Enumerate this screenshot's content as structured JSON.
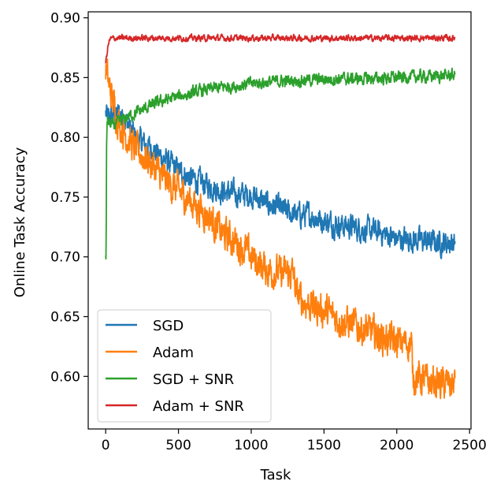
{
  "chart_data": {
    "type": "line",
    "title": "",
    "xlabel": "Task",
    "ylabel": "Online Task Accuracy",
    "xlim": [
      -120,
      2510
    ],
    "ylim": [
      0.556,
      0.905
    ],
    "xticks": [
      0,
      500,
      1000,
      1500,
      2000,
      2500
    ],
    "xtick_labels": [
      "0",
      "500",
      "1000",
      "1500",
      "2000",
      "2500"
    ],
    "yticks": [
      0.6,
      0.65,
      0.7,
      0.75,
      0.8,
      0.85,
      0.9
    ],
    "ytick_labels": [
      "0.60",
      "0.65",
      "0.70",
      "0.75",
      "0.80",
      "0.85",
      "0.90"
    ],
    "grid": false,
    "legend_position": "lower-left",
    "series": [
      {
        "name": "SGD",
        "color": "#1f77b4",
        "noise": 0.008,
        "x": [
          0,
          20,
          50,
          100,
          150,
          200,
          300,
          400,
          500,
          600,
          700,
          800,
          900,
          1000,
          1100,
          1200,
          1300,
          1400,
          1500,
          1600,
          1700,
          1800,
          1900,
          2000,
          2100,
          2200,
          2300,
          2400
        ],
        "values": [
          0.82,
          0.815,
          0.818,
          0.82,
          0.812,
          0.8,
          0.792,
          0.782,
          0.772,
          0.765,
          0.76,
          0.755,
          0.752,
          0.752,
          0.745,
          0.74,
          0.735,
          0.735,
          0.73,
          0.727,
          0.725,
          0.722,
          0.72,
          0.715,
          0.715,
          0.713,
          0.712,
          0.712
        ]
      },
      {
        "name": "Adam",
        "color": "#ff7f0e",
        "noise": 0.011,
        "x": [
          0,
          20,
          50,
          100,
          150,
          200,
          300,
          400,
          500,
          600,
          700,
          800,
          900,
          1000,
          1100,
          1200,
          1290,
          1310,
          1400,
          1500,
          1600,
          1700,
          1800,
          1900,
          2000,
          2100,
          2110,
          2130,
          2200,
          2300,
          2400
        ],
        "values": [
          0.858,
          0.845,
          0.83,
          0.81,
          0.8,
          0.79,
          0.78,
          0.765,
          0.755,
          0.745,
          0.735,
          0.72,
          0.712,
          0.7,
          0.69,
          0.686,
          0.686,
          0.668,
          0.66,
          0.655,
          0.648,
          0.643,
          0.638,
          0.633,
          0.628,
          0.628,
          0.6,
          0.6,
          0.596,
          0.594,
          0.593
        ]
      },
      {
        "name": "SGD + SNR",
        "color": "#2ca02c",
        "noise": 0.004,
        "x": [
          0,
          3,
          6,
          10,
          20,
          40,
          70,
          100,
          150,
          200,
          300,
          400,
          500,
          600,
          700,
          800,
          900,
          1000,
          1200,
          1400,
          1600,
          1800,
          2000,
          2200,
          2400
        ],
        "values": [
          0.701,
          0.7,
          0.79,
          0.815,
          0.812,
          0.81,
          0.811,
          0.813,
          0.817,
          0.82,
          0.826,
          0.831,
          0.834,
          0.837,
          0.84,
          0.842,
          0.843,
          0.845,
          0.847,
          0.848,
          0.849,
          0.849,
          0.85,
          0.851,
          0.852
        ]
      },
      {
        "name": "Adam + SNR",
        "color": "#d62728",
        "noise": 0.002,
        "x": [
          0,
          5,
          15,
          30,
          60,
          100,
          300,
          600,
          1000,
          1500,
          2000,
          2400
        ],
        "values": [
          0.863,
          0.866,
          0.876,
          0.882,
          0.883,
          0.883,
          0.883,
          0.883,
          0.883,
          0.883,
          0.883,
          0.883
        ]
      }
    ]
  }
}
